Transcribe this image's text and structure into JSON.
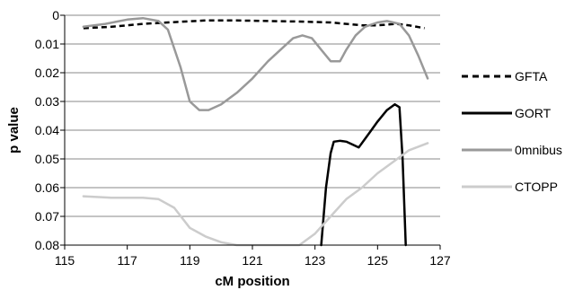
{
  "chart_data": {
    "type": "line",
    "title": "",
    "xlabel": "cM position",
    "ylabel": "p value",
    "xlim": [
      115,
      127
    ],
    "ylim": [
      0,
      0.08
    ],
    "y_reversed": true,
    "grid": true,
    "legend_position": "right",
    "x_ticks": [
      "115",
      "117",
      "119",
      "121",
      "123",
      "125",
      "127"
    ],
    "x_tick_values": [
      115,
      117,
      119,
      121,
      123,
      125,
      127
    ],
    "y_ticks": [
      "0",
      "0.01",
      "0.02",
      "0.03",
      "0.04",
      "0.05",
      "0.06",
      "0.07",
      "0.08"
    ],
    "y_tick_values": [
      0,
      0.01,
      0.02,
      0.03,
      0.04,
      0.05,
      0.06,
      0.07,
      0.08
    ],
    "series": [
      {
        "name": "GFTA",
        "color": "#000000",
        "style": "dashed",
        "x": [
          115.6,
          116.5,
          117.5,
          118.3,
          119.5,
          120.5,
          121.5,
          122.5,
          123.5,
          124.0,
          124.5,
          125.0,
          125.6,
          126.0,
          126.5
        ],
        "y": [
          0.0045,
          0.004,
          0.003,
          0.0025,
          0.0018,
          0.0018,
          0.002,
          0.0022,
          0.0025,
          0.003,
          0.0035,
          0.0035,
          0.003,
          0.0035,
          0.0045
        ]
      },
      {
        "name": "GORT",
        "color": "#000000",
        "style": "solid",
        "x": [
          123.2,
          123.35,
          123.5,
          123.6,
          123.8,
          124.0,
          124.2,
          124.4,
          124.6,
          124.8,
          125.0,
          125.3,
          125.55,
          125.7,
          125.8,
          125.9
        ],
        "y": [
          0.08,
          0.06,
          0.048,
          0.044,
          0.0437,
          0.044,
          0.045,
          0.046,
          0.043,
          0.04,
          0.037,
          0.033,
          0.031,
          0.032,
          0.05,
          0.08
        ]
      },
      {
        "name": "0mnibus",
        "color": "#999999",
        "style": "solid",
        "x": [
          115.6,
          116.3,
          117.0,
          117.5,
          118.0,
          118.3,
          118.7,
          119.0,
          119.3,
          119.6,
          120.0,
          120.5,
          121.0,
          121.5,
          122.0,
          122.3,
          122.6,
          122.9,
          123.2,
          123.5,
          123.8,
          124.0,
          124.3,
          124.6,
          125.0,
          125.3,
          125.7,
          126.0,
          126.3,
          126.6
        ],
        "y": [
          0.004,
          0.003,
          0.0015,
          0.001,
          0.002,
          0.005,
          0.018,
          0.03,
          0.033,
          0.033,
          0.031,
          0.027,
          0.022,
          0.016,
          0.011,
          0.008,
          0.007,
          0.008,
          0.012,
          0.016,
          0.016,
          0.012,
          0.007,
          0.004,
          0.0025,
          0.002,
          0.003,
          0.007,
          0.014,
          0.022
        ]
      },
      {
        "name": "CTOPP",
        "color": "#cccccc",
        "style": "solid",
        "x": [
          115.6,
          116.5,
          117.5,
          118.0,
          118.5,
          119.0,
          119.5,
          120.0,
          120.5,
          121.0,
          121.5,
          122.0,
          122.5,
          123.0,
          123.5,
          124.0,
          124.5,
          125.0,
          125.5,
          126.0,
          126.6
        ],
        "y": [
          0.063,
          0.0635,
          0.0635,
          0.064,
          0.067,
          0.074,
          0.077,
          0.079,
          0.08,
          0.08,
          0.08,
          0.08,
          0.08,
          0.076,
          0.07,
          0.064,
          0.06,
          0.055,
          0.051,
          0.047,
          0.0445
        ]
      }
    ]
  }
}
